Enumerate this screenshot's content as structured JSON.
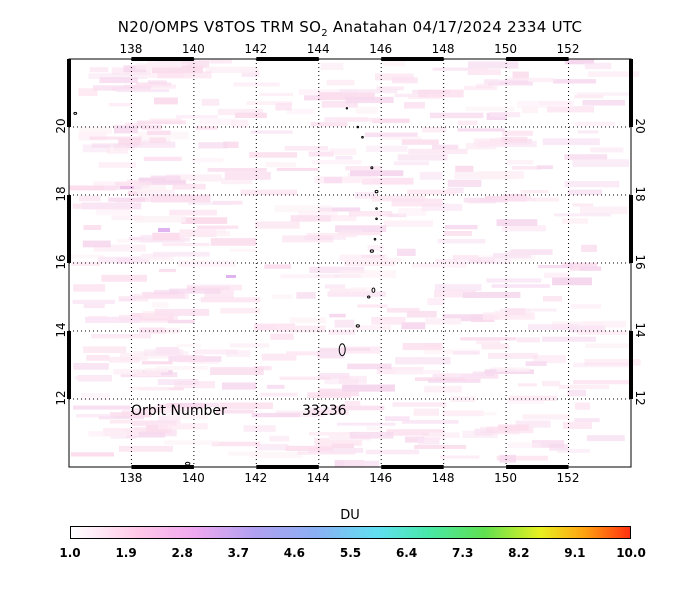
{
  "title": {
    "prefix": "N20/OMPS V8TOS TRM SO",
    "subscript": "2",
    "suffix": " Anatahan 04/17/2024 2334 UTC"
  },
  "map": {
    "lon_range": [
      136,
      154
    ],
    "lat_range": [
      10,
      22
    ],
    "lon_ticks": [
      "138",
      "140",
      "142",
      "144",
      "146",
      "148",
      "150",
      "152"
    ],
    "lat_ticks": [
      "12",
      "14",
      "16",
      "18",
      "20"
    ],
    "grid": "dotted"
  },
  "orbit": {
    "label": "Orbit Number",
    "value": "33236"
  },
  "colorbar": {
    "title": "DU",
    "ticks": [
      "1.0",
      "1.9",
      "2.8",
      "3.7",
      "4.6",
      "5.5",
      "6.4",
      "7.3",
      "8.2",
      "9.1",
      "10.0"
    ]
  },
  "colors": {
    "low": "#ffffff",
    "pink": "#ffc8e8",
    "high": "#ff3010"
  }
}
